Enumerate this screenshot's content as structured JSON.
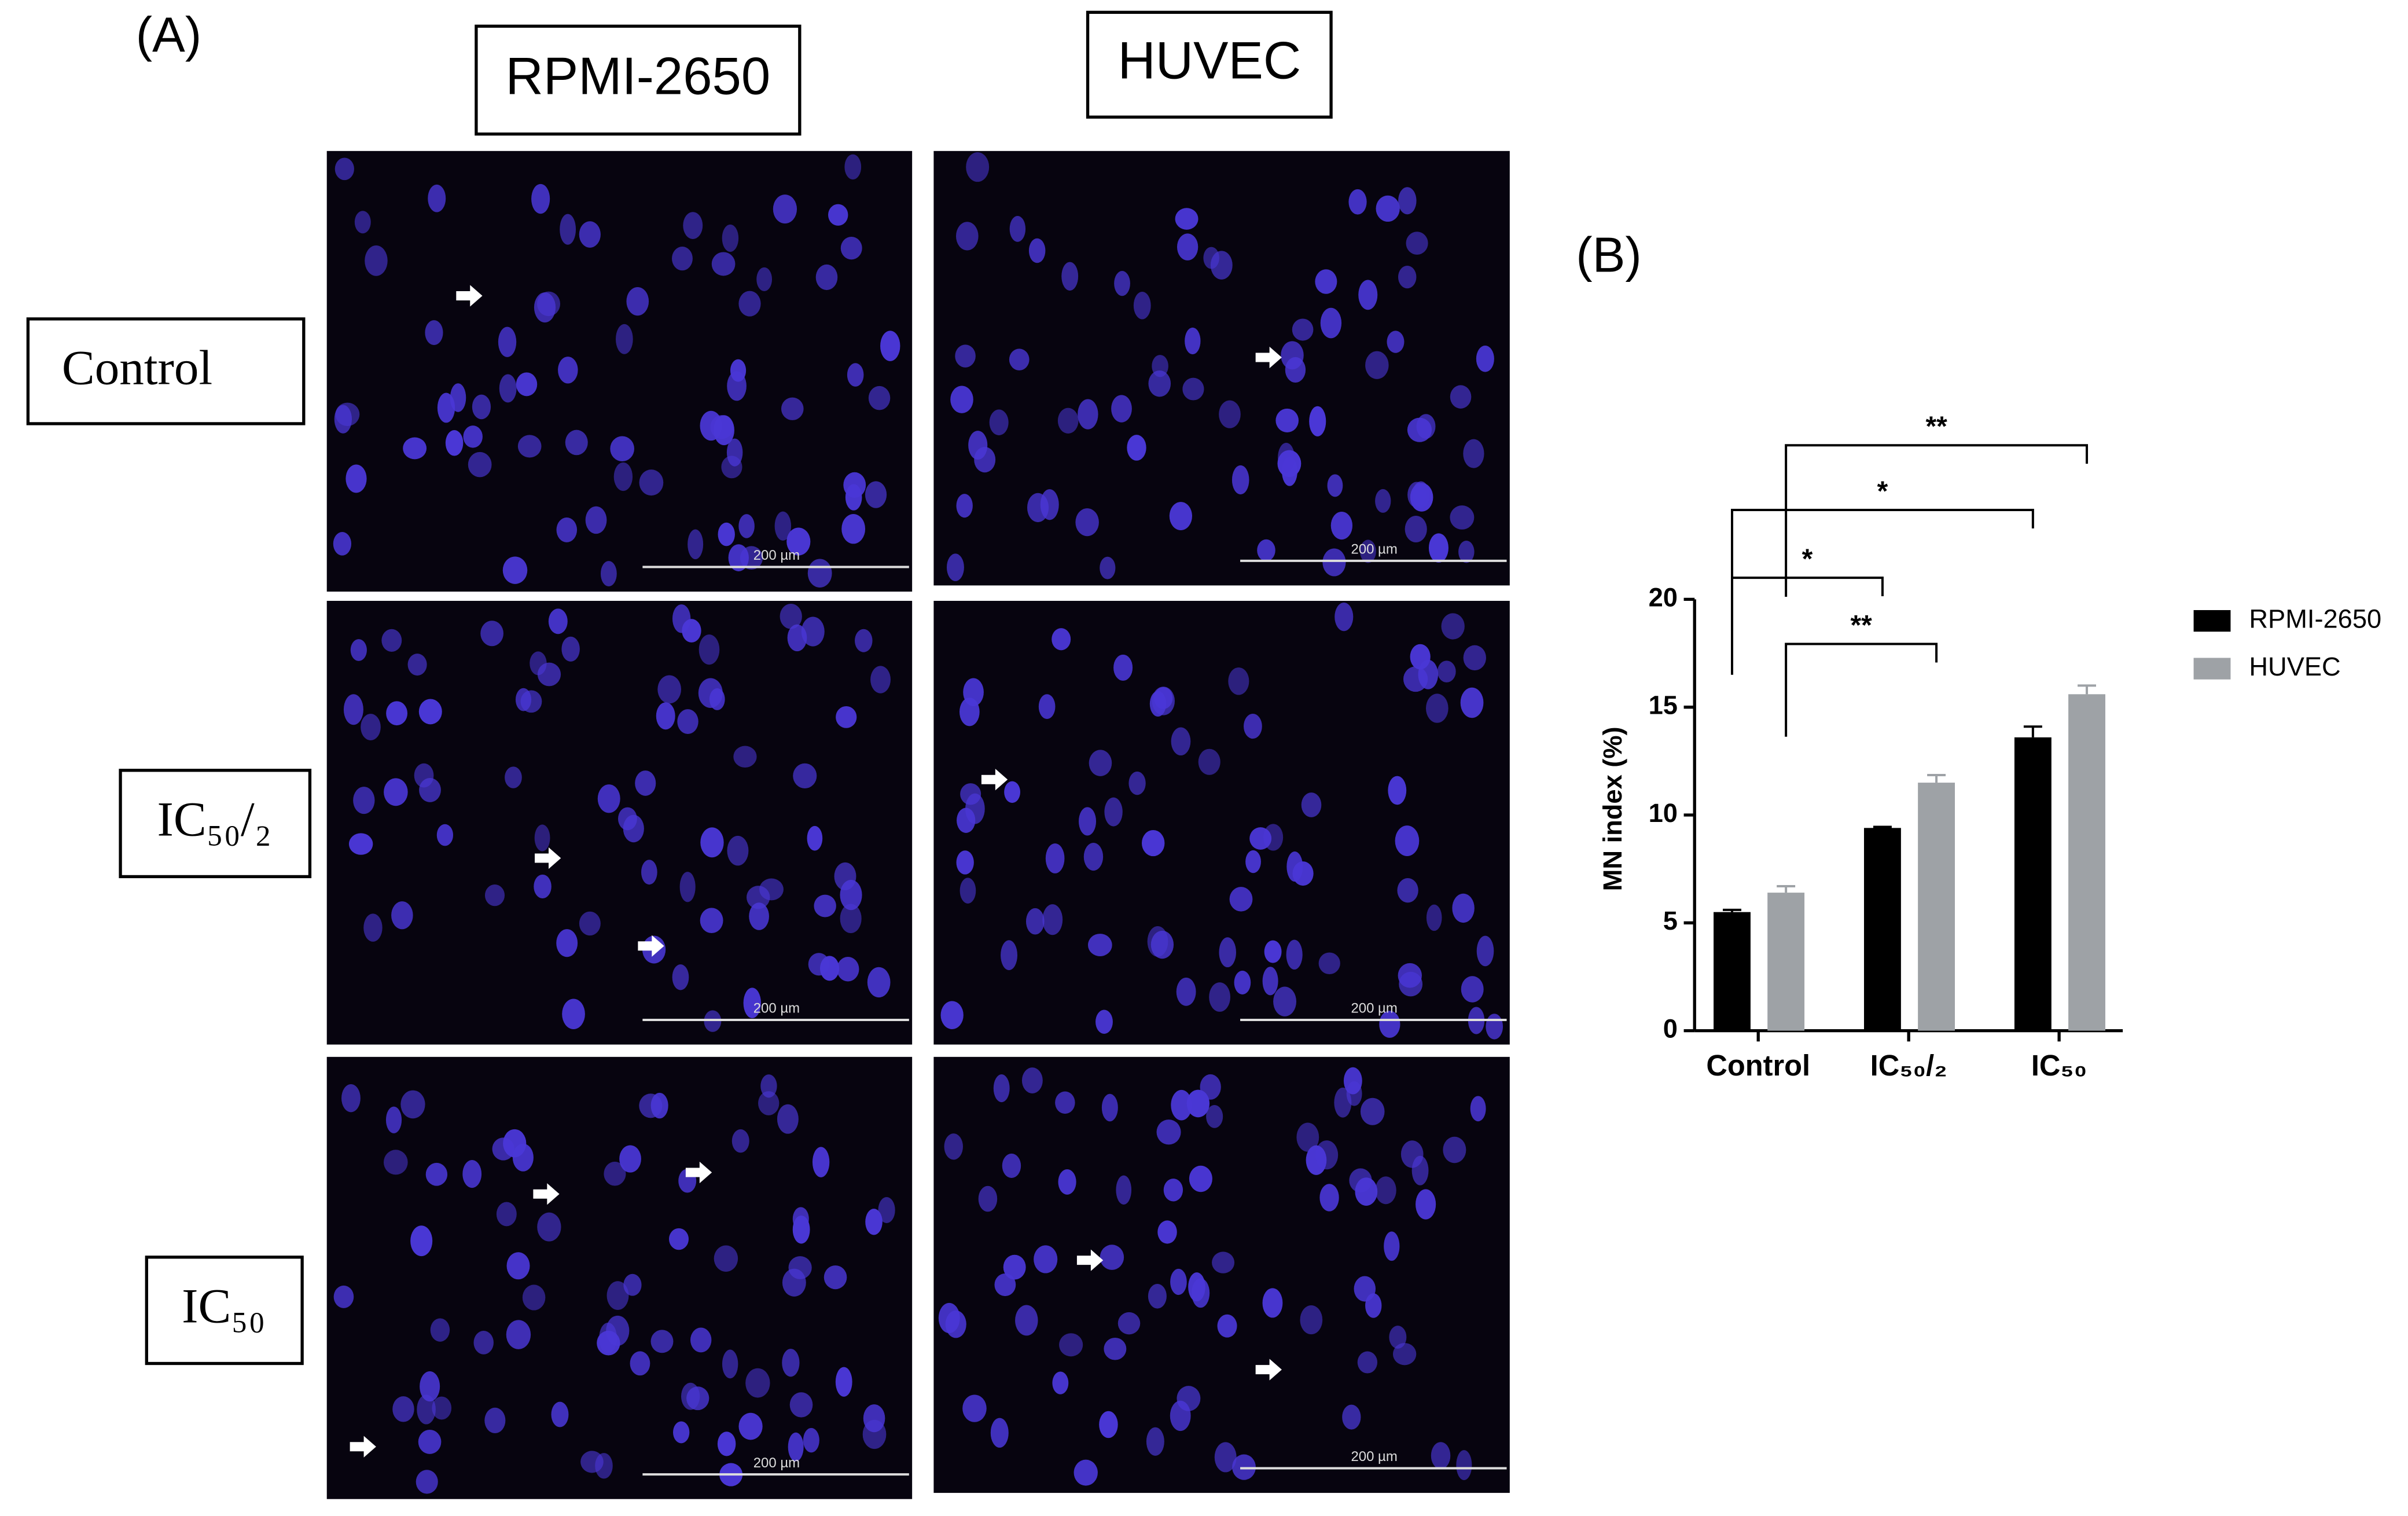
{
  "panel_a": {
    "label": "(A)",
    "columns": [
      "RPMI-2650",
      "HUVEC"
    ],
    "rows": [
      "Control",
      "IC₅₀/₂",
      "IC₅₀"
    ],
    "scale_bar": "200 µm"
  },
  "chart_data": {
    "type": "bar",
    "panel_label": "(B)",
    "ylabel": "MN index (%)",
    "categories": [
      "Control",
      "IC₅₀/₂",
      "IC₅₀"
    ],
    "series": [
      {
        "name": "RPMI-2650",
        "color": "#000000",
        "values": [
          5.5,
          9.4,
          13.6
        ],
        "errors": [
          0.1,
          0.05,
          0.5
        ]
      },
      {
        "name": "HUVEC",
        "color": "#9ea2a6",
        "values": [
          6.4,
          11.5,
          15.6
        ],
        "errors": [
          0.3,
          0.35,
          0.4
        ]
      }
    ],
    "ylim": [
      0,
      20
    ],
    "yticks": [
      0,
      5,
      10,
      15,
      20
    ],
    "legend": "right",
    "annotations": [
      "*",
      "**",
      "*",
      "**"
    ]
  }
}
